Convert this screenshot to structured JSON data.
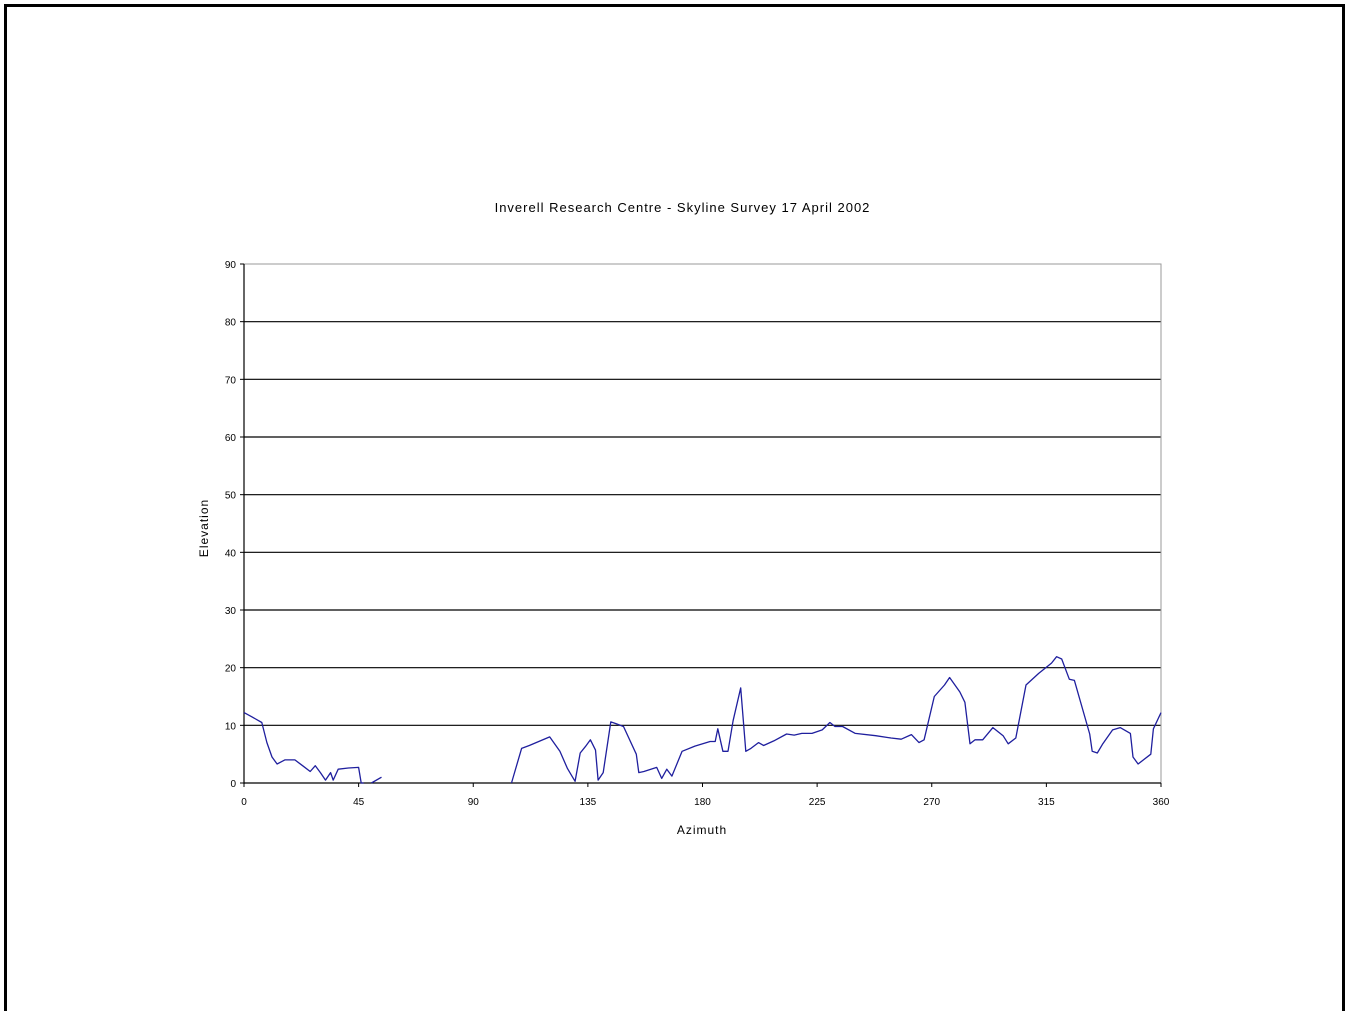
{
  "chart_data": {
    "type": "line",
    "title": "Inverell Research Centre - Skyline Survey 17 April 2002",
    "xlabel": "Azimuth",
    "ylabel": "Elevation",
    "xlim": [
      0,
      360
    ],
    "ylim": [
      0,
      90
    ],
    "x_ticks": [
      0,
      45,
      90,
      135,
      180,
      225,
      270,
      315,
      360
    ],
    "y_ticks": [
      0,
      10,
      20,
      30,
      40,
      50,
      60,
      70,
      80,
      90
    ],
    "grid": "horizontal",
    "line_color": "#1f1f9e",
    "series": [
      {
        "segments": [
          [
            [
              0,
              12.2
            ],
            [
              3,
              11.5
            ],
            [
              7,
              10.5
            ],
            [
              9,
              7
            ],
            [
              11,
              4.5
            ],
            [
              13,
              3.3
            ],
            [
              16,
              4
            ],
            [
              20,
              4
            ],
            [
              23,
              3
            ],
            [
              26,
              2
            ],
            [
              28,
              3
            ],
            [
              30,
              1.8
            ],
            [
              32,
              0.5
            ],
            [
              34,
              1.8
            ],
            [
              35,
              0.5
            ],
            [
              37,
              2.4
            ],
            [
              41,
              2.6
            ],
            [
              45,
              2.7
            ],
            [
              46,
              0
            ],
            [
              47,
              0
            ]
          ],
          [
            [
              50,
              0
            ],
            [
              54,
              1
            ]
          ],
          [
            [
              105,
              0
            ],
            [
              109,
              6
            ],
            [
              112,
              6.5
            ],
            [
              120,
              8
            ],
            [
              124,
              5.5
            ],
            [
              127,
              2.5
            ],
            [
              129,
              1
            ],
            [
              130,
              0.3
            ],
            [
              132,
              5.2
            ],
            [
              134,
              6.3
            ],
            [
              136,
              7.5
            ],
            [
              138,
              5.7
            ],
            [
              139,
              0.5
            ],
            [
              141,
              1.8
            ],
            [
              144,
              10.6
            ],
            [
              146,
              10.3
            ],
            [
              149,
              9.8
            ],
            [
              154,
              5
            ],
            [
              155,
              1.8
            ],
            [
              157,
              2
            ],
            [
              162,
              2.7
            ],
            [
              164,
              0.8
            ],
            [
              166,
              2.4
            ],
            [
              168,
              1.2
            ],
            [
              172,
              5.5
            ],
            [
              177,
              6.4
            ],
            [
              183,
              7.2
            ],
            [
              185,
              7.2
            ],
            [
              186,
              9.4
            ],
            [
              188,
              5.5
            ],
            [
              190,
              5.5
            ],
            [
              192,
              10.8
            ],
            [
              195,
              16.5
            ],
            [
              197,
              5.5
            ],
            [
              199,
              6
            ],
            [
              202,
              7
            ],
            [
              204,
              6.5
            ],
            [
              208,
              7.3
            ],
            [
              213,
              8.5
            ],
            [
              216,
              8.3
            ],
            [
              219,
              8.6
            ],
            [
              223,
              8.6
            ],
            [
              227,
              9.2
            ],
            [
              230,
              10.5
            ],
            [
              232,
              9.8
            ],
            [
              235,
              9.8
            ],
            [
              240,
              8.6
            ],
            [
              248,
              8.2
            ],
            [
              254,
              7.8
            ],
            [
              258,
              7.6
            ],
            [
              262,
              8.4
            ],
            [
              265,
              7
            ],
            [
              267,
              7.5
            ],
            [
              271,
              15
            ],
            [
              275,
              17
            ],
            [
              277,
              18.3
            ],
            [
              281,
              15.8
            ],
            [
              283,
              14
            ],
            [
              285,
              6.8
            ],
            [
              287,
              7.5
            ],
            [
              290,
              7.5
            ],
            [
              294,
              9.6
            ],
            [
              298,
              8.2
            ],
            [
              300,
              6.8
            ],
            [
              303,
              7.8
            ],
            [
              307,
              17
            ],
            [
              312,
              19
            ],
            [
              317,
              20.8
            ],
            [
              319,
              21.9
            ],
            [
              321,
              21.5
            ],
            [
              324,
              18
            ],
            [
              326,
              17.8
            ],
            [
              332,
              8.5
            ],
            [
              333,
              5.5
            ],
            [
              335,
              5.2
            ],
            [
              337,
              6.7
            ],
            [
              341,
              9.2
            ],
            [
              344,
              9.6
            ],
            [
              348,
              8.6
            ],
            [
              349,
              4.5
            ],
            [
              351,
              3.3
            ],
            [
              356,
              5
            ],
            [
              357,
              9.4
            ],
            [
              360,
              12.2
            ]
          ]
        ]
      }
    ]
  }
}
